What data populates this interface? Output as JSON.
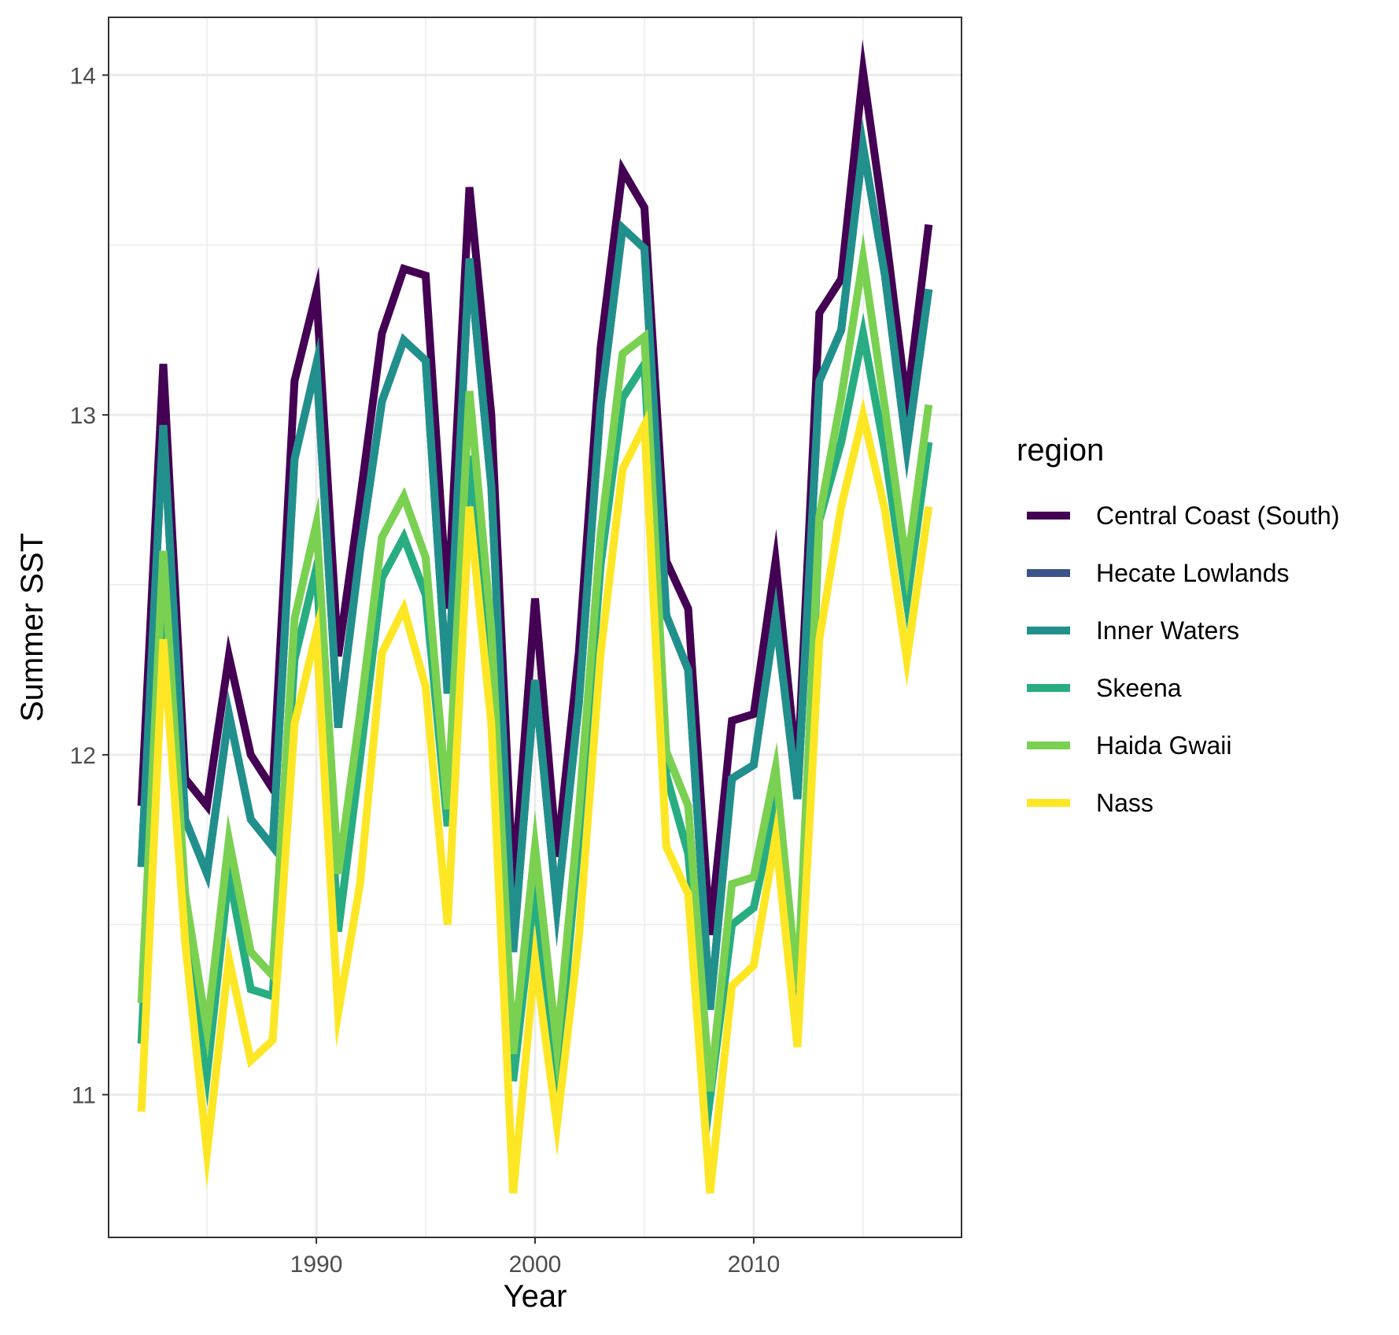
{
  "chart_data": {
    "type": "line",
    "xlabel": "Year",
    "ylabel": "Summer SST",
    "xlim": [
      1980.5,
      2019.5
    ],
    "ylim": [
      10.58,
      14.17
    ],
    "x_ticks": [
      1990,
      2000,
      2010
    ],
    "y_ticks": [
      11,
      12,
      13,
      14
    ],
    "grid": true,
    "legend_title": "region",
    "legend_position": "right",
    "x": [
      1982,
      1983,
      1984,
      1985,
      1986,
      1987,
      1988,
      1989,
      1990,
      1991,
      1992,
      1993,
      1994,
      1995,
      1996,
      1997,
      1998,
      1999,
      2000,
      2001,
      2002,
      2003,
      2004,
      2005,
      2006,
      2007,
      2008,
      2009,
      2010,
      2011,
      2012,
      2013,
      2014,
      2015,
      2016,
      2017,
      2018
    ],
    "series": [
      {
        "name": "Central Coast (South)",
        "color": "#440154",
        "values": [
          11.85,
          13.15,
          11.93,
          11.85,
          12.29,
          12.0,
          11.9,
          13.1,
          13.36,
          12.29,
          12.75,
          13.24,
          13.43,
          13.41,
          12.43,
          13.67,
          13.0,
          11.6,
          12.46,
          11.7,
          12.3,
          13.2,
          13.72,
          13.61,
          12.57,
          12.43,
          11.47,
          12.1,
          12.12,
          12.57,
          11.94,
          13.3,
          13.4,
          14.01,
          13.55,
          13.03,
          13.56
        ]
      },
      {
        "name": "Hecate Lowlands",
        "color": "#3b528b",
        "values": [
          11.67,
          12.97,
          11.81,
          11.65,
          12.12,
          11.81,
          11.73,
          12.87,
          13.15,
          12.08,
          12.6,
          13.04,
          13.22,
          13.16,
          12.18,
          13.46,
          12.79,
          11.42,
          12.22,
          11.55,
          12.15,
          13.03,
          13.55,
          13.49,
          12.41,
          12.25,
          11.25,
          11.93,
          11.97,
          12.41,
          11.87,
          13.1,
          13.25,
          13.79,
          13.41,
          12.9,
          13.37
        ]
      },
      {
        "name": "Inner Waters",
        "color": "#21908c",
        "values": [
          11.67,
          12.97,
          11.81,
          11.65,
          12.12,
          11.81,
          11.73,
          12.87,
          13.15,
          12.08,
          12.6,
          13.04,
          13.22,
          13.16,
          12.18,
          13.46,
          12.79,
          11.42,
          12.22,
          11.55,
          12.15,
          13.03,
          13.55,
          13.49,
          12.41,
          12.25,
          11.25,
          11.93,
          11.97,
          12.41,
          11.87,
          13.1,
          13.25,
          13.79,
          13.41,
          12.9,
          13.37
        ]
      },
      {
        "name": "Skeena",
        "color": "#27ad81",
        "values": [
          11.15,
          12.49,
          11.55,
          11.06,
          11.65,
          11.31,
          11.29,
          12.28,
          12.55,
          11.48,
          11.99,
          12.52,
          12.64,
          12.47,
          11.79,
          12.88,
          12.27,
          11.04,
          11.6,
          11.04,
          11.75,
          12.56,
          13.05,
          13.15,
          11.94,
          11.71,
          10.99,
          11.5,
          11.55,
          11.85,
          11.16,
          12.69,
          12.92,
          13.24,
          12.89,
          12.45,
          12.92
        ]
      },
      {
        "name": "Haida Gwaii",
        "color": "#7ad151",
        "values": [
          11.27,
          12.6,
          11.59,
          11.19,
          11.75,
          11.42,
          11.35,
          12.4,
          12.68,
          11.65,
          12.12,
          12.64,
          12.76,
          12.58,
          11.84,
          13.07,
          12.37,
          11.12,
          11.73,
          11.14,
          11.83,
          12.65,
          13.18,
          13.23,
          12.01,
          11.85,
          11.01,
          11.62,
          11.64,
          11.96,
          11.31,
          12.7,
          13.05,
          13.46,
          13.02,
          12.55,
          13.03
        ]
      },
      {
        "name": "Nass",
        "color": "#fde725",
        "values": [
          10.95,
          12.34,
          11.45,
          10.83,
          11.4,
          11.1,
          11.16,
          12.09,
          12.36,
          11.24,
          11.62,
          12.3,
          12.43,
          12.2,
          11.5,
          12.73,
          12.09,
          10.71,
          11.4,
          10.91,
          11.46,
          12.3,
          12.84,
          12.97,
          11.73,
          11.59,
          10.71,
          11.32,
          11.38,
          11.76,
          11.14,
          12.34,
          12.73,
          13.0,
          12.72,
          12.28,
          12.73
        ]
      }
    ]
  }
}
